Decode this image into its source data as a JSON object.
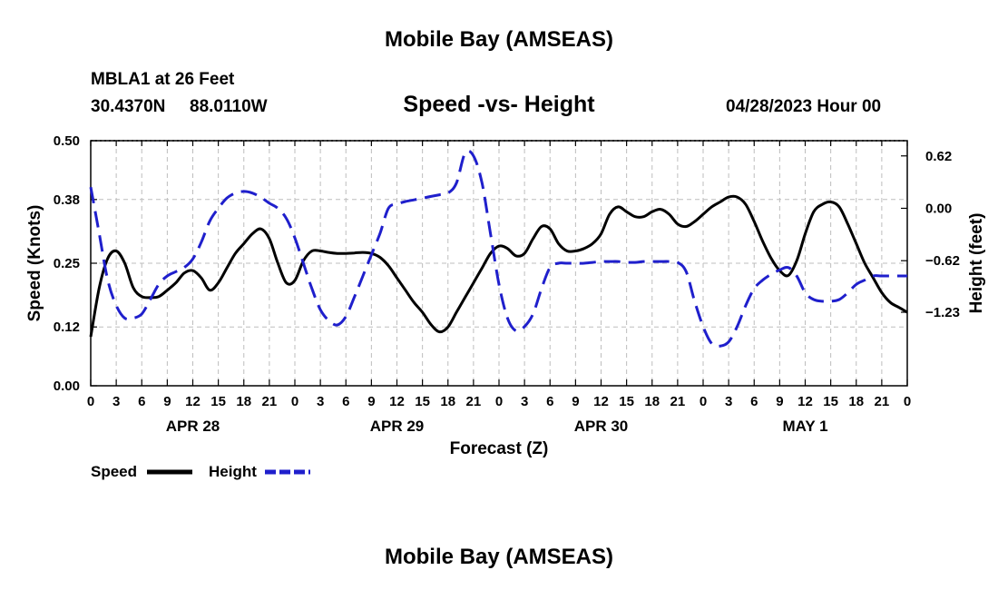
{
  "title_top": "Mobile Bay (AMSEAS)",
  "title_bottom": "Mobile Bay (AMSEAS)",
  "station": {
    "name_line": "MBLA1 at 26 Feet",
    "lat": "30.4370N",
    "lon": "88.0110W"
  },
  "forecast_time": "04/28/2023 Hour 00",
  "chart_data": {
    "type": "line",
    "title": "Speed -vs- Height",
    "xlabel": "Forecast (Z)",
    "ylabel_left": "Speed (Knots)",
    "ylabel_right": "Height (feet)",
    "x_range_hours": [
      0,
      96
    ],
    "x_ticks_hours": [
      0,
      3,
      6,
      9,
      12,
      15,
      18,
      21,
      24,
      27,
      30,
      33,
      36,
      39,
      42,
      45,
      48,
      51,
      54,
      57,
      60,
      63,
      66,
      69,
      72,
      75,
      78,
      81,
      84,
      87,
      90,
      93,
      96
    ],
    "x_tick_labels": [
      "0",
      "3",
      "6",
      "9",
      "12",
      "15",
      "18",
      "21",
      "0",
      "3",
      "6",
      "9",
      "12",
      "15",
      "18",
      "21",
      "0",
      "3",
      "6",
      "9",
      "12",
      "15",
      "18",
      "21",
      "0",
      "3",
      "6",
      "9",
      "12",
      "15",
      "18",
      "21",
      "0"
    ],
    "day_labels": [
      {
        "hour": 12,
        "label": "APR 28"
      },
      {
        "hour": 36,
        "label": "APR 29"
      },
      {
        "hour": 60,
        "label": "APR 30"
      },
      {
        "hour": 84,
        "label": "MAY 1"
      }
    ],
    "y_left": {
      "min": 0.0,
      "max": 0.5,
      "ticks": [
        0.0,
        0.12,
        0.25,
        0.38,
        0.5
      ],
      "tick_labels": [
        "0.00",
        "0.12",
        "0.25",
        "0.38",
        "0.50"
      ]
    },
    "y_right": {
      "min": -2.1,
      "max": 0.8,
      "ticks": [
        0.62,
        0.0,
        -0.62,
        -1.23
      ],
      "tick_labels": [
        "0.62",
        "0.00",
        "−0.62",
        "−1.23"
      ]
    },
    "grid": true,
    "series": [
      {
        "name": "Speed",
        "axis": "left",
        "color": "#000000",
        "dash": "solid",
        "x": [
          0,
          1,
          2,
          3,
          4,
          5,
          6,
          7,
          8,
          9,
          10,
          11,
          12,
          13,
          14,
          15,
          16,
          17,
          18,
          19,
          20,
          21,
          22,
          23,
          24,
          25,
          26,
          27,
          28,
          29,
          30,
          31,
          32,
          33,
          34,
          35,
          36,
          37,
          38,
          39,
          40,
          41,
          42,
          43,
          44,
          45,
          46,
          47,
          48,
          49,
          50,
          51,
          52,
          53,
          54,
          55,
          56,
          57,
          58,
          59,
          60,
          61,
          62,
          63,
          64,
          65,
          66,
          67,
          68,
          69,
          70,
          71,
          72,
          73,
          74,
          75,
          76,
          77,
          78,
          79,
          80,
          81,
          82,
          83,
          84,
          85,
          86,
          87,
          88,
          89,
          90,
          91,
          92,
          93,
          94,
          95,
          96
        ],
        "y": [
          0.1,
          0.2,
          0.26,
          0.275,
          0.25,
          0.2,
          0.182,
          0.18,
          0.182,
          0.195,
          0.21,
          0.23,
          0.235,
          0.22,
          0.195,
          0.21,
          0.24,
          0.27,
          0.29,
          0.31,
          0.32,
          0.3,
          0.25,
          0.21,
          0.215,
          0.255,
          0.275,
          0.275,
          0.272,
          0.27,
          0.27,
          0.271,
          0.272,
          0.27,
          0.262,
          0.245,
          0.22,
          0.195,
          0.17,
          0.15,
          0.125,
          0.11,
          0.12,
          0.15,
          0.18,
          0.21,
          0.24,
          0.27,
          0.285,
          0.28,
          0.265,
          0.27,
          0.3,
          0.325,
          0.32,
          0.29,
          0.275,
          0.275,
          0.28,
          0.29,
          0.31,
          0.35,
          0.365,
          0.355,
          0.345,
          0.345,
          0.355,
          0.36,
          0.35,
          0.33,
          0.325,
          0.335,
          0.35,
          0.365,
          0.375,
          0.385,
          0.385,
          0.37,
          0.335,
          0.295,
          0.26,
          0.235,
          0.225,
          0.255,
          0.31,
          0.355,
          0.37,
          0.375,
          0.365,
          0.33,
          0.29,
          0.25,
          0.22,
          0.19,
          0.17,
          0.16,
          0.15
        ]
      },
      {
        "name": "Height",
        "axis": "right",
        "color": "#1f1fcc",
        "dash": "dashed",
        "x": [
          0,
          1,
          2,
          3,
          4,
          5,
          6,
          7,
          8,
          9,
          10,
          11,
          12,
          13,
          14,
          15,
          16,
          17,
          18,
          19,
          20,
          21,
          22,
          23,
          24,
          25,
          26,
          27,
          28,
          29,
          30,
          31,
          32,
          33,
          34,
          35,
          36,
          37,
          38,
          39,
          40,
          41,
          42,
          43,
          44,
          45,
          46,
          47,
          48,
          49,
          50,
          51,
          52,
          53,
          54,
          55,
          56,
          57,
          58,
          59,
          60,
          61,
          62,
          63,
          64,
          65,
          66,
          67,
          68,
          69,
          70,
          71,
          72,
          73,
          74,
          75,
          76,
          77,
          78,
          79,
          80,
          81,
          82,
          83,
          84,
          85,
          86,
          87,
          88,
          89,
          90,
          91,
          92,
          93,
          94,
          95,
          96
        ],
        "y": [
          0.25,
          -0.3,
          -0.85,
          -1.15,
          -1.3,
          -1.3,
          -1.25,
          -1.08,
          -0.9,
          -0.8,
          -0.75,
          -0.7,
          -0.6,
          -0.4,
          -0.15,
          0.0,
          0.12,
          0.18,
          0.2,
          0.18,
          0.13,
          0.06,
          0.0,
          -0.12,
          -0.35,
          -0.65,
          -0.95,
          -1.2,
          -1.33,
          -1.38,
          -1.28,
          -1.05,
          -0.8,
          -0.55,
          -0.3,
          0.0,
          0.05,
          0.08,
          0.1,
          0.12,
          0.14,
          0.16,
          0.18,
          0.3,
          0.65,
          0.62,
          0.3,
          -0.3,
          -0.9,
          -1.3,
          -1.45,
          -1.4,
          -1.25,
          -0.95,
          -0.7,
          -0.65,
          -0.65,
          -0.65,
          -0.65,
          -0.64,
          -0.63,
          -0.63,
          -0.63,
          -0.64,
          -0.64,
          -0.63,
          -0.63,
          -0.63,
          -0.63,
          -0.64,
          -0.75,
          -1.1,
          -1.4,
          -1.6,
          -1.63,
          -1.58,
          -1.4,
          -1.15,
          -0.95,
          -0.85,
          -0.78,
          -0.73,
          -0.7,
          -0.8,
          -1.0,
          -1.08,
          -1.1,
          -1.1,
          -1.08,
          -1.0,
          -0.9,
          -0.85,
          -0.8,
          -0.8,
          -0.8,
          -0.8,
          -0.8
        ]
      }
    ],
    "legend": [
      {
        "label": "Speed",
        "color": "#000000",
        "dash": "solid"
      },
      {
        "label": "Height",
        "color": "#1f1fcc",
        "dash": "dashed"
      }
    ],
    "legend_position": "bottom-left"
  }
}
